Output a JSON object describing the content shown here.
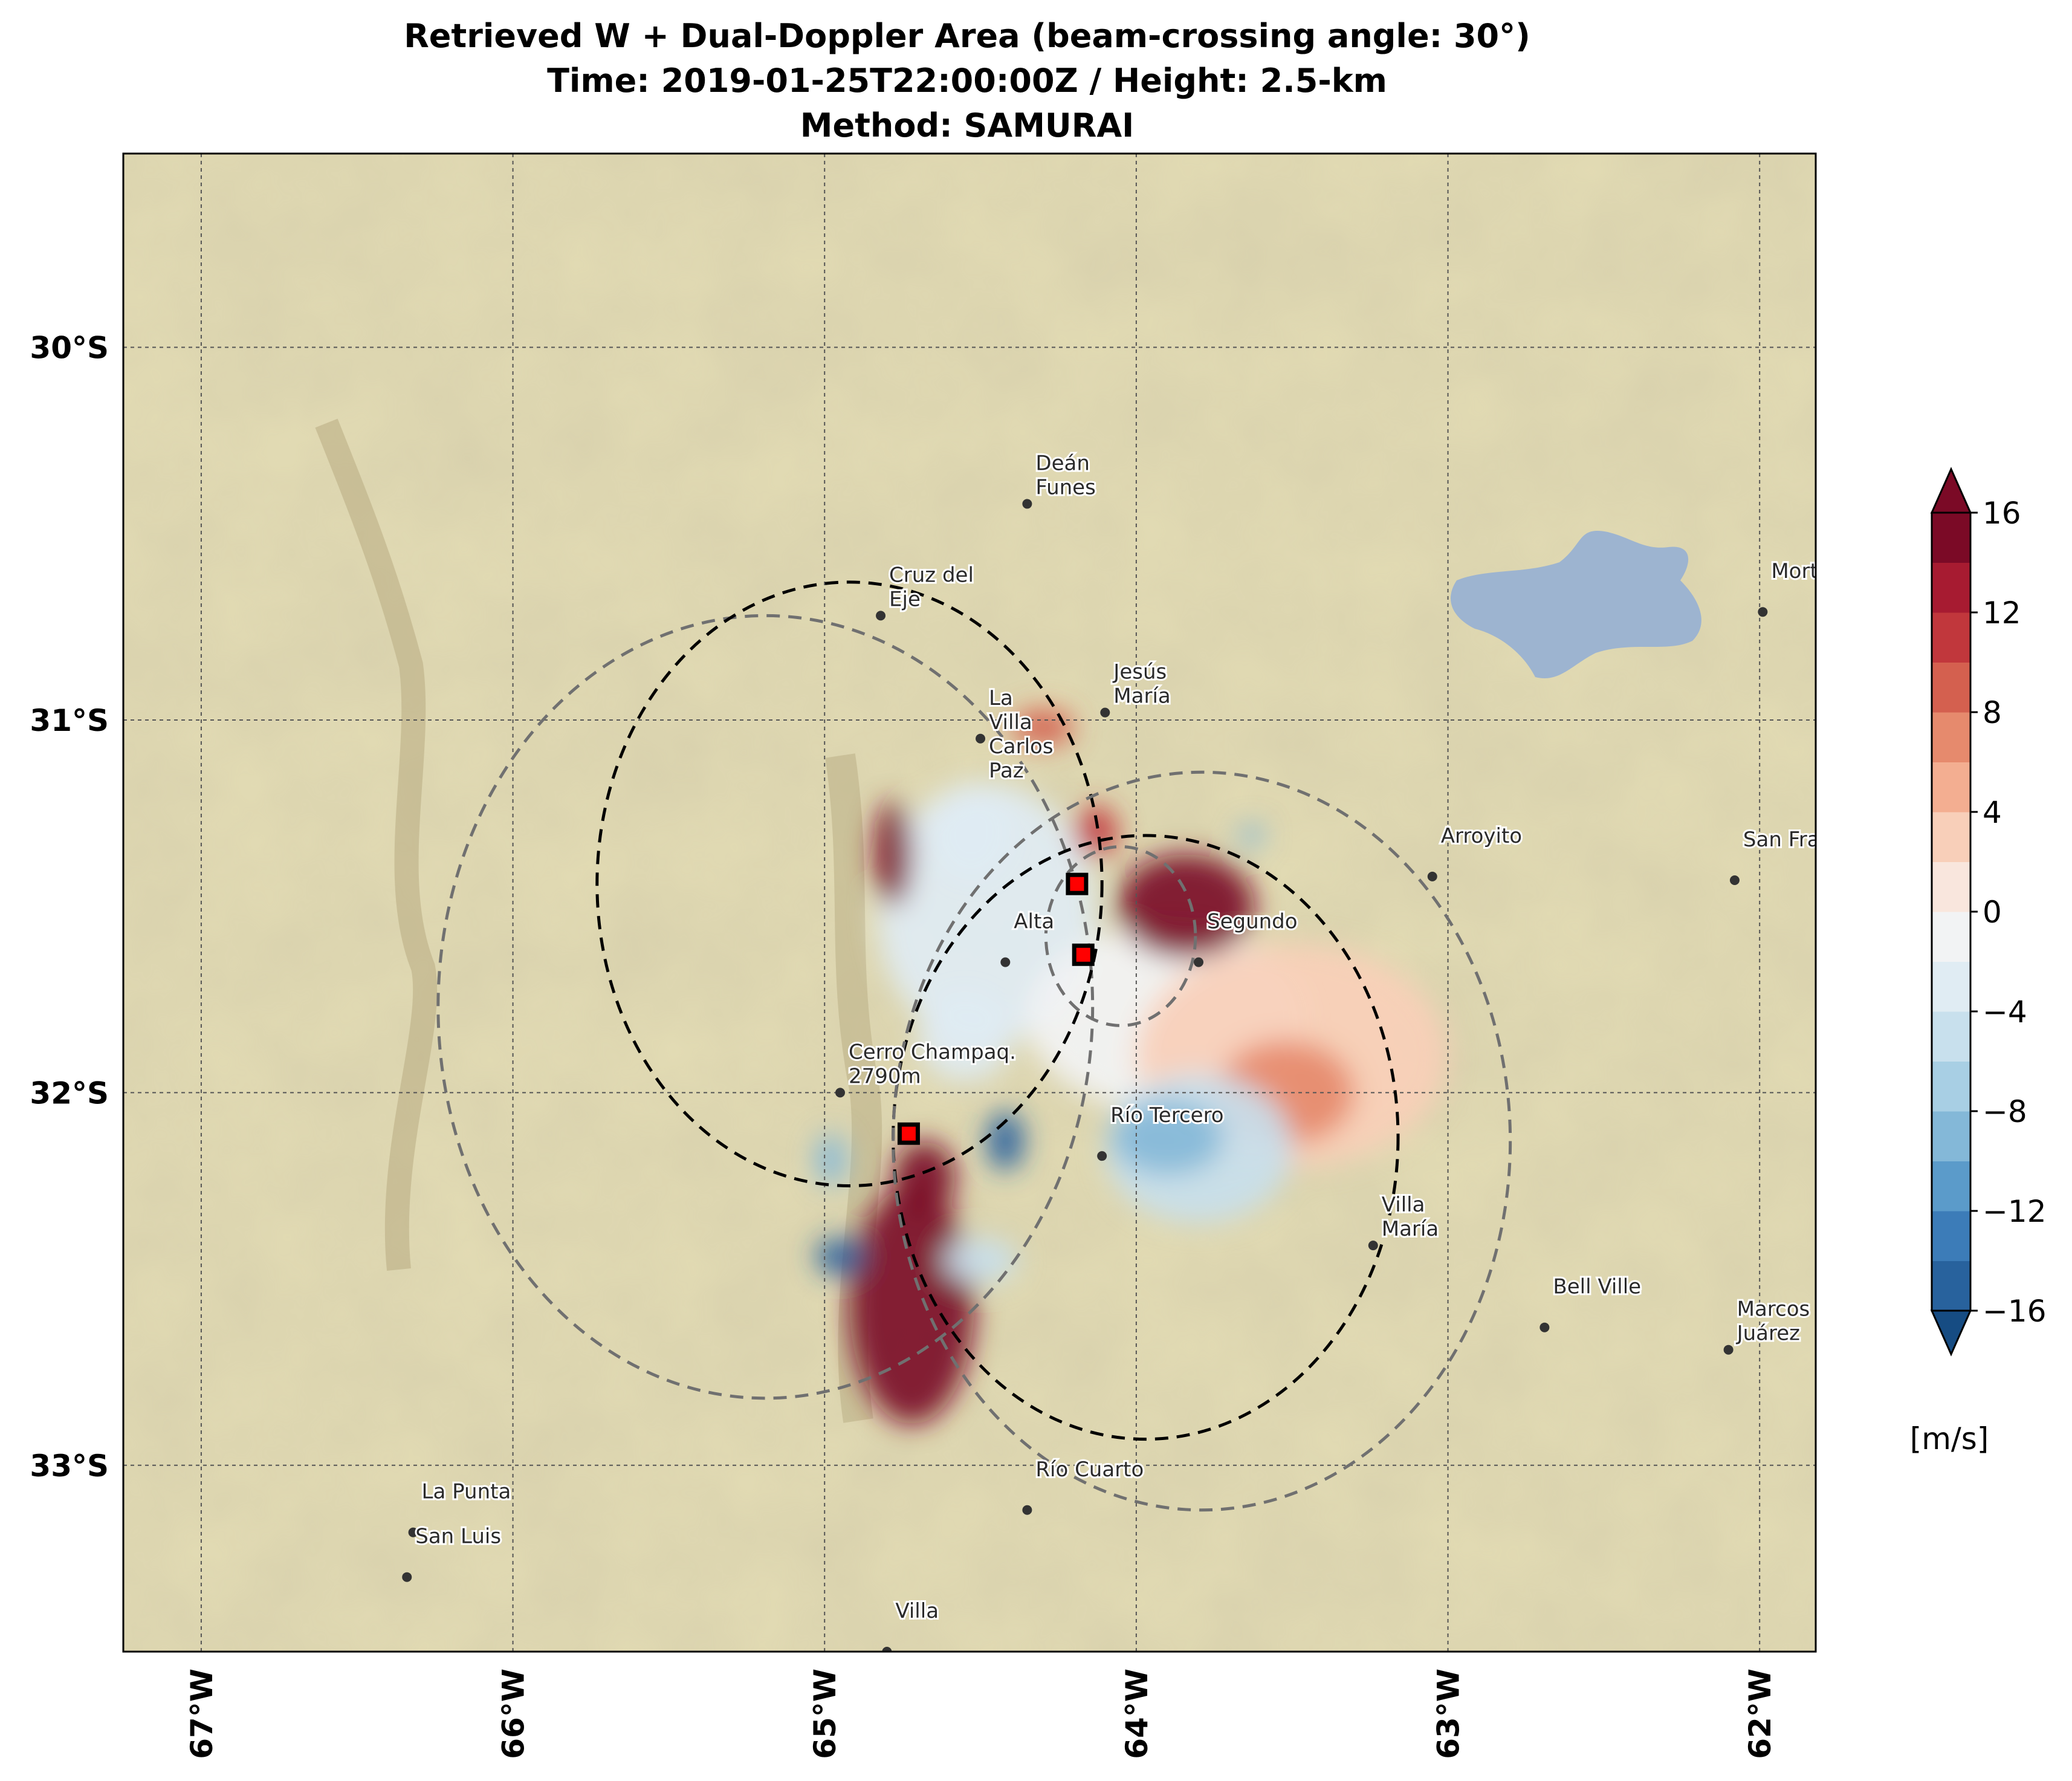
{
  "title": {
    "line1": "Retrieved W + Dual-Doppler Area (beam-crossing angle: 30°)",
    "line2": "Time: 2019-01-25T22:00:00Z / Height: 2.5-km",
    "line3": "Method: SAMURAI"
  },
  "map": {
    "extent": {
      "lon_min": -67.25,
      "lon_max": -61.82,
      "lat_min": -33.5,
      "lat_max": -29.48
    },
    "lat_ticks": [
      {
        "value": -30,
        "label": "30°S"
      },
      {
        "value": -31,
        "label": "31°S"
      },
      {
        "value": -32,
        "label": "32°S"
      },
      {
        "value": -33,
        "label": "33°S"
      }
    ],
    "lon_ticks": [
      {
        "value": -67,
        "label": "67°W"
      },
      {
        "value": -66,
        "label": "66°W"
      },
      {
        "value": -65,
        "label": "65°W"
      },
      {
        "value": -64,
        "label": "64°W"
      },
      {
        "value": -63,
        "label": "63°W"
      },
      {
        "value": -62,
        "label": "62°W"
      }
    ],
    "grid": true,
    "colors": {
      "land": "#e3dcb4",
      "water": "#9db4d0",
      "grid": "#555555"
    },
    "places": [
      {
        "name": "Deán",
        "lon": -64.35,
        "lat": -30.42
      },
      {
        "name": "Funes",
        "lon": -64.35,
        "lat": -30.42
      },
      {
        "name": "Jesús",
        "lon": -64.1,
        "lat": -30.98
      },
      {
        "name": "María",
        "lon": -64.1,
        "lat": -30.98
      },
      {
        "name": "Cruz del",
        "lon": -64.82,
        "lat": -30.72
      },
      {
        "name": "Eje",
        "lon": -64.82,
        "lat": -30.72
      },
      {
        "name": "La",
        "lon": -64.5,
        "lat": -31.05
      },
      {
        "name": "Villa",
        "lon": -64.5,
        "lat": -31.05
      },
      {
        "name": "Carlos",
        "lon": -64.5,
        "lat": -31.05
      },
      {
        "name": "Paz",
        "lon": -64.5,
        "lat": -31.05
      },
      {
        "name": "Alta",
        "lon": -64.42,
        "lat": -31.65
      },
      {
        "name": "Segundo",
        "lon": -63.8,
        "lat": -31.65
      },
      {
        "name": "Arroyito",
        "lon": -63.05,
        "lat": -31.42
      },
      {
        "name": "San Francisco",
        "lon": -62.08,
        "lat": -31.43
      },
      {
        "name": "Morteros",
        "lon": -61.99,
        "lat": -30.71
      },
      {
        "name": "Cerro Champaq.",
        "lon": -64.95,
        "lat": -32.0
      },
      {
        "name": "2790m",
        "lon": -64.95,
        "lat": -32.0
      },
      {
        "name": "Río Tercero",
        "lon": -64.11,
        "lat": -32.17
      },
      {
        "name": "Villa",
        "lon": -63.24,
        "lat": -32.41
      },
      {
        "name": "María",
        "lon": -63.24,
        "lat": -32.41
      },
      {
        "name": "Bell Ville",
        "lon": -62.69,
        "lat": -32.63
      },
      {
        "name": "Marcos",
        "lon": -62.1,
        "lat": -32.69
      },
      {
        "name": "Juárez",
        "lon": -62.1,
        "lat": -32.69
      },
      {
        "name": "Río Cuarto",
        "lon": -64.35,
        "lat": -33.12
      },
      {
        "name": "La Punta",
        "lon": -66.32,
        "lat": -33.18
      },
      {
        "name": "San Luis",
        "lon": -66.34,
        "lat": -33.3
      },
      {
        "name": "Villa",
        "lon": -64.8,
        "lat": -33.5
      }
    ]
  },
  "radars": [
    {
      "lon": -64.19,
      "lat": -31.44
    },
    {
      "lon": -64.17,
      "lat": -31.63
    },
    {
      "lon": -64.73,
      "lat": -32.11
    }
  ],
  "circles": [
    {
      "lon": -65.19,
      "lat": -31.77,
      "r_deg": 1.05,
      "style": "gray"
    },
    {
      "lon": -64.92,
      "lat": -31.44,
      "r_deg": 0.81,
      "style": "black"
    },
    {
      "lon": -64.05,
      "lat": -31.58,
      "r_deg": 0.24,
      "style": "gray"
    },
    {
      "lon": -63.97,
      "lat": -32.12,
      "r_deg": 0.81,
      "style": "black"
    },
    {
      "lon": -63.79,
      "lat": -32.13,
      "r_deg": 0.99,
      "style": "gray"
    }
  ],
  "field_blobs": [
    {
      "lon": -64.48,
      "lat": -31.52,
      "rx": 0.35,
      "ry": 0.35,
      "value": -3
    },
    {
      "lon": -63.9,
      "lat": -31.8,
      "rx": 0.45,
      "ry": 0.25,
      "value": -2
    },
    {
      "lon": -63.5,
      "lat": -31.9,
      "rx": 0.5,
      "ry": 0.3,
      "value": 2
    },
    {
      "lon": -63.52,
      "lat": -32.0,
      "rx": 0.22,
      "ry": 0.14,
      "value": 7
    },
    {
      "lon": -63.8,
      "lat": -32.15,
      "rx": 0.3,
      "ry": 0.2,
      "value": -6
    },
    {
      "lon": -63.9,
      "lat": -32.12,
      "rx": 0.18,
      "ry": 0.1,
      "value": -9
    },
    {
      "lon": -63.84,
      "lat": -31.5,
      "rx": 0.22,
      "ry": 0.14,
      "value": 17
    },
    {
      "lon": -64.13,
      "lat": -31.3,
      "rx": 0.07,
      "ry": 0.07,
      "value": 10
    },
    {
      "lon": -64.3,
      "lat": -31.02,
      "rx": 0.1,
      "ry": 0.05,
      "value": 8
    },
    {
      "lon": -64.78,
      "lat": -31.36,
      "rx": 0.06,
      "ry": 0.14,
      "value": 15
    },
    {
      "lon": -64.53,
      "lat": -31.3,
      "rx": 0.13,
      "ry": 0.13,
      "value": -4
    },
    {
      "lon": -64.72,
      "lat": -32.57,
      "rx": 0.2,
      "ry": 0.32,
      "value": 18
    },
    {
      "lon": -64.68,
      "lat": -32.23,
      "rx": 0.1,
      "ry": 0.1,
      "value": 16
    },
    {
      "lon": -64.95,
      "lat": -32.44,
      "rx": 0.08,
      "ry": 0.05,
      "value": -16
    },
    {
      "lon": -64.42,
      "lat": -32.13,
      "rx": 0.06,
      "ry": 0.08,
      "value": -16
    },
    {
      "lon": -64.98,
      "lat": -32.18,
      "rx": 0.05,
      "ry": 0.07,
      "value": -9
    },
    {
      "lon": -64.5,
      "lat": -32.45,
      "rx": 0.12,
      "ry": 0.06,
      "value": -5
    },
    {
      "lon": -64.55,
      "lat": -31.85,
      "rx": 0.15,
      "ry": 0.12,
      "value": -3
    },
    {
      "lon": -63.63,
      "lat": -31.31,
      "rx": 0.04,
      "ry": 0.03,
      "value": -9
    }
  ],
  "colorbar": {
    "ticks": [
      16,
      12,
      8,
      4,
      0,
      -4,
      -8,
      -12,
      -16
    ],
    "tick_labels": [
      "16",
      "12",
      "8",
      "4",
      "0",
      "−4",
      "−8",
      "−12",
      "−16"
    ],
    "min": -16,
    "max": 16,
    "step": 2,
    "colors": [
      "#164c83",
      "#28629d",
      "#3c7cb8",
      "#5b9bca",
      "#84b8d8",
      "#a8cfe4",
      "#c8e0ed",
      "#e0ecf3",
      "#f2f3f4",
      "#f9e6dd",
      "#f8cfb9",
      "#f3ae91",
      "#e68a6d",
      "#d4604f",
      "#c1373c",
      "#a71b31",
      "#7b0a26"
    ],
    "units": "[m/s]"
  }
}
